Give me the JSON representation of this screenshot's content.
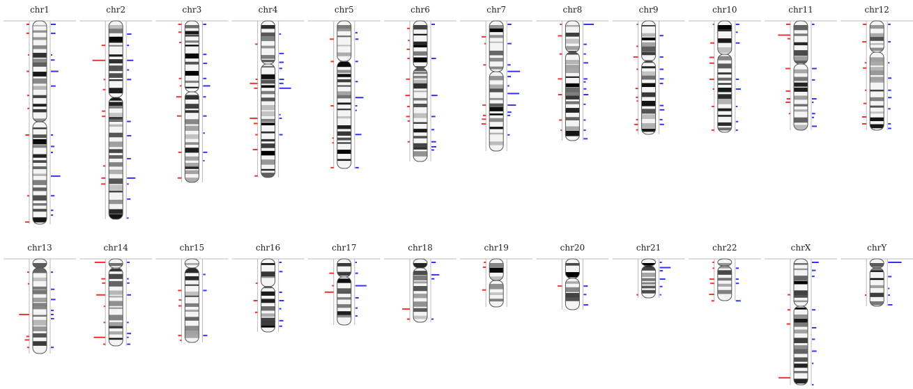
{
  "chromosomes": [
    "chr1",
    "chr2",
    "chr3",
    "chr4",
    "chr5",
    "chr6",
    "chr7",
    "chr8",
    "chr9",
    "chr10",
    "chr11",
    "chr12",
    "chr13",
    "chr14",
    "chr15",
    "chr16",
    "chr17",
    "chr18",
    "chr19",
    "chr20",
    "chr21",
    "chr22",
    "chrX",
    "chrY"
  ]
}
